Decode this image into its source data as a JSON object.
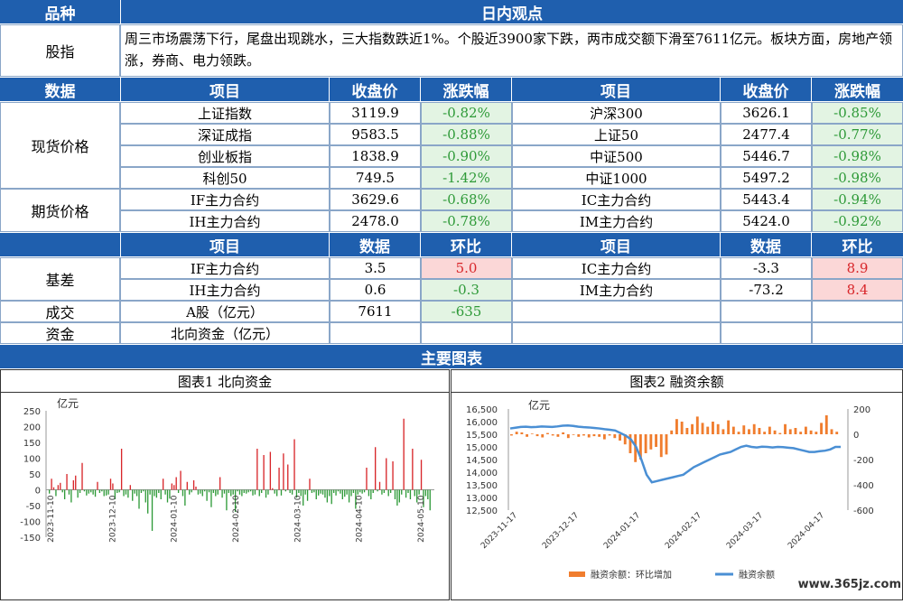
{
  "header": {
    "col1": "品种",
    "col2": "日内观点"
  },
  "commentary": {
    "label": "股指",
    "text": "周三市场震荡下行，尾盘出现跳水，三大指数跌近1%。个股近3900家下跌，两市成交额下滑至7611亿元。板块方面，房地产领涨，券商、电力领跌。"
  },
  "data_header": {
    "section": "数据",
    "item": "项目",
    "close": "收盘价",
    "change": "涨跌幅"
  },
  "spot": {
    "label": "现货价格",
    "rows": [
      {
        "l_name": "上证指数",
        "l_close": "3119.9",
        "l_chg": "-0.82%",
        "r_name": "沪深300",
        "r_close": "3626.1",
        "r_chg": "-0.85%"
      },
      {
        "l_name": "深证成指",
        "l_close": "9583.5",
        "l_chg": "-0.88%",
        "r_name": "上证50",
        "r_close": "2477.4",
        "r_chg": "-0.77%"
      },
      {
        "l_name": "创业板指",
        "l_close": "1838.9",
        "l_chg": "-0.90%",
        "r_name": "中证500",
        "r_close": "5446.7",
        "r_chg": "-0.98%"
      },
      {
        "l_name": "科创50",
        "l_close": "749.5",
        "l_chg": "-1.42%",
        "r_name": "中证1000",
        "r_close": "5497.2",
        "r_chg": "-0.98%"
      }
    ]
  },
  "futures": {
    "label": "期货价格",
    "rows": [
      {
        "l_name": "IF主力合约",
        "l_close": "3629.6",
        "l_chg": "-0.68%",
        "r_name": "IC主力合约",
        "r_close": "5443.4",
        "r_chg": "-0.94%"
      },
      {
        "l_name": "IH主力合约",
        "l_close": "2478.0",
        "l_chg": "-0.78%",
        "r_name": "IM主力合约",
        "r_close": "5424.0",
        "r_chg": "-0.92%"
      }
    ]
  },
  "basis_header": {
    "item": "项目",
    "data": "数据",
    "ratio": "环比"
  },
  "basis": {
    "label": "基差",
    "rows": [
      {
        "l_name": "IF主力合约",
        "l_val": "3.5",
        "l_ratio": "5.0",
        "r_name": "IC主力合约",
        "r_val": "-3.3",
        "r_ratio": "8.9"
      },
      {
        "l_name": "IH主力合约",
        "l_val": "0.6",
        "l_ratio": "-0.3",
        "r_name": "IM主力合约",
        "r_val": "-73.2",
        "r_ratio": "8.4"
      }
    ]
  },
  "turnover": {
    "label": "成交",
    "name": "A股（亿元）",
    "val": "7611",
    "ratio": "-635"
  },
  "funds": {
    "label": "资金",
    "name": "北向资金（亿元）"
  },
  "main_charts": {
    "title": "主要图表",
    "chart1_title": "图表1 北向资金",
    "chart2_title": "图表2 融资余额"
  },
  "watermark": "www.365jz.com",
  "colors": {
    "header": "#1f5fae",
    "up": "#d8262a",
    "down": "#2e9a38",
    "margin_bar": "#f07d2e",
    "margin_line": "#4a8fd4"
  },
  "chart_data": [
    {
      "type": "bar",
      "ylabel": "亿元",
      "ylim": [
        -150,
        250
      ],
      "yticks": [
        -150,
        -100,
        -50,
        0,
        50,
        100,
        150,
        200,
        250
      ],
      "xticks": [
        "2023-11-10",
        "2023-12-10",
        "2024-01-10",
        "2024-02-10",
        "2024-03-10",
        "2024-04-10",
        "2024-05-10"
      ],
      "values": [
        -12,
        35,
        8,
        -20,
        15,
        22,
        -8,
        -30,
        50,
        -15,
        -40,
        30,
        45,
        -25,
        -10,
        85,
        -5,
        -18,
        -12,
        -8,
        -15,
        -22,
        25,
        -10,
        -5,
        -20,
        -18,
        -15,
        35,
        20,
        -30,
        -10,
        -8,
        130,
        -20,
        -15,
        -25,
        15,
        -35,
        -12,
        -20,
        -60,
        -10,
        -5,
        -40,
        -75,
        -15,
        -130,
        -20,
        -25,
        -10,
        -30,
        35,
        -15,
        -40,
        -28,
        20,
        15,
        40,
        -10,
        60,
        -20,
        -50,
        25,
        -15,
        -8,
        30,
        10,
        -15,
        -12,
        -20,
        -5,
        -35,
        -8,
        -55,
        -10,
        -20,
        -15,
        40,
        -25,
        -12,
        -65,
        -10,
        -20,
        -15,
        -70,
        -5,
        -15,
        -20,
        -10,
        -12,
        -8,
        -5,
        -18,
        -15,
        130,
        -20,
        -10,
        110,
        -25,
        -15,
        120,
        5,
        -12,
        -20,
        70,
        -18,
        115,
        -5,
        80,
        -10,
        -15,
        160,
        -25,
        -10,
        -20,
        -50,
        -15,
        -35,
        35,
        -10,
        -8,
        -30,
        -18,
        -12,
        -15,
        -25,
        -40,
        -20,
        -45,
        -10,
        -18,
        -5,
        -12,
        -30,
        -22,
        -15,
        -40,
        -20,
        -10,
        -60,
        -15,
        -8,
        -12,
        -8,
        70,
        -20,
        -30,
        -10,
        135,
        -5,
        25,
        -15,
        -10,
        100,
        -20,
        -10,
        90,
        -30,
        -50,
        -40,
        -15,
        225,
        -25,
        -10,
        -30,
        130,
        -20,
        -40,
        -15,
        95,
        -55,
        -20,
        -30,
        -65
      ]
    },
    {
      "type": "line",
      "ylabel": "亿元",
      "ylim": [
        12500,
        16500
      ],
      "yticks": [
        12500,
        13000,
        13500,
        14000,
        14500,
        15000,
        15500,
        16000,
        16500
      ],
      "y2lim": [
        -600,
        200
      ],
      "y2ticks": [
        -600,
        -400,
        -200,
        0,
        200
      ],
      "xticks": [
        "2023-11-17",
        "2023-12-17",
        "2024-01-17",
        "2024-02-17",
        "2024-03-17",
        "2024-04-17"
      ],
      "legend": [
        "融资余额：环比增加",
        "融资余额"
      ],
      "line_values": [
        15730,
        15760,
        15790,
        15800,
        15780,
        15790,
        15810,
        15800,
        15790,
        15810,
        15840,
        15850,
        15830,
        15800,
        15780,
        15770,
        15750,
        15730,
        15700,
        15680,
        15650,
        15550,
        15450,
        15300,
        15000,
        14500,
        13900,
        13600,
        13650,
        13700,
        13750,
        13800,
        13850,
        13900,
        14050,
        14200,
        14300,
        14400,
        14500,
        14600,
        14700,
        14750,
        14800,
        14900,
        15000,
        15050,
        15000,
        14980,
        15010,
        15000,
        14980,
        15000,
        14990,
        14970,
        14950,
        14900,
        14850,
        14800,
        14800,
        14830,
        14850,
        14900,
        15000,
        15000
      ],
      "bar_values": [
        -10,
        20,
        15,
        -20,
        5,
        -15,
        -25,
        10,
        -10,
        -20,
        15,
        -30,
        -5,
        -20,
        -10,
        -25,
        -15,
        -20,
        -40,
        -10,
        -30,
        -50,
        -80,
        -150,
        -220,
        -200,
        -150,
        -120,
        -100,
        -180,
        -160,
        30,
        120,
        100,
        50,
        80,
        140,
        90,
        60,
        100,
        80,
        40,
        110,
        60,
        20,
        70,
        40,
        80,
        50,
        20,
        60,
        30,
        10,
        80,
        40,
        50,
        20,
        60,
        30,
        20,
        90,
        150,
        40,
        20
      ]
    }
  ]
}
